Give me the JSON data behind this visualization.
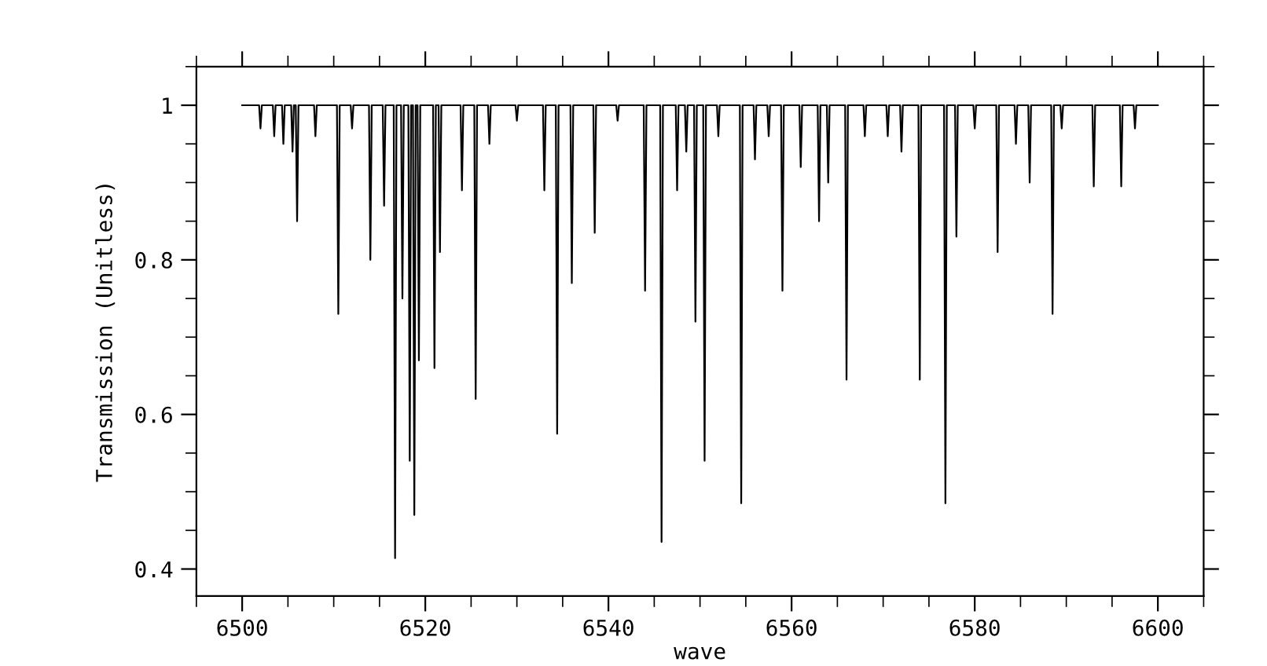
{
  "chart_data": {
    "type": "line",
    "xlabel": "wave",
    "ylabel": "Transmission (Unitless)",
    "xlim": [
      6495,
      6605
    ],
    "ylim": [
      0.365,
      1.05
    ],
    "xticks": [
      6500,
      6520,
      6540,
      6560,
      6580,
      6600
    ],
    "yticks": [
      0.4,
      0.6,
      0.8,
      1
    ],
    "marker": "none",
    "line_style": "solid",
    "series": [
      {
        "color": "#000000",
        "x": [
          6500,
          6501.85,
          6502,
          6502.15,
          6503.35,
          6503.5,
          6503.65,
          6504.35,
          6504.5,
          6504.65,
          6505.35,
          6505.5,
          6505.65,
          6505.85,
          6506,
          6506.15,
          6507.85,
          6508,
          6508.15,
          6510.35,
          6510.5,
          6510.65,
          6511.85,
          6512,
          6512.15,
          6513.85,
          6514,
          6514.15,
          6515.35,
          6515.5,
          6515.65,
          6516.55,
          6516.7,
          6516.85,
          6517.35,
          6517.5,
          6517.65,
          6518.15,
          6518.3,
          6518.45,
          6518.65,
          6518.8,
          6518.95,
          6519.15,
          6519.3,
          6519.45,
          6520.85,
          6521,
          6521.15,
          6521.45,
          6521.6,
          6521.75,
          6523.85,
          6524,
          6524.15,
          6525.35,
          6525.5,
          6525.65,
          6526.85,
          6527,
          6527.15,
          6529.85,
          6530,
          6530.15,
          6532.85,
          6533,
          6533.15,
          6534.25,
          6534.4,
          6534.55,
          6535.85,
          6536,
          6536.15,
          6538.35,
          6538.5,
          6538.65,
          6540.85,
          6541,
          6541.15,
          6543.85,
          6544,
          6544.15,
          6545.65,
          6545.8,
          6545.95,
          6547.35,
          6547.5,
          6547.65,
          6548.35,
          6548.5,
          6548.65,
          6549.35,
          6549.5,
          6549.65,
          6550.35,
          6550.5,
          6550.65,
          6551.85,
          6552,
          6552.15,
          6554.35,
          6554.5,
          6554.65,
          6555.85,
          6556,
          6556.15,
          6557.35,
          6557.5,
          6557.65,
          6558.85,
          6559,
          6559.15,
          6560.85,
          6561,
          6561.15,
          6562.85,
          6563,
          6563.15,
          6563.85,
          6564,
          6564.15,
          6565.85,
          6566,
          6566.15,
          6567.85,
          6568,
          6568.15,
          6570.35,
          6570.5,
          6570.65,
          6571.85,
          6572,
          6572.15,
          6573.85,
          6574,
          6574.15,
          6576.65,
          6576.8,
          6576.95,
          6577.85,
          6578,
          6578.15,
          6579.85,
          6580,
          6580.15,
          6582.35,
          6582.5,
          6582.65,
          6584.35,
          6584.5,
          6584.65,
          6585.85,
          6586,
          6586.15,
          6588.35,
          6588.5,
          6588.65,
          6589.35,
          6589.5,
          6589.65,
          6592.85,
          6593,
          6593.15,
          6595.85,
          6596,
          6596.15,
          6597.35,
          6597.5,
          6597.65,
          6600
        ],
        "values": [
          1,
          1,
          0.97,
          1,
          1,
          0.96,
          1,
          1,
          0.95,
          1,
          1,
          0.94,
          1,
          1,
          0.85,
          1,
          1,
          0.96,
          1,
          1,
          0.73,
          1,
          1,
          0.97,
          1,
          1,
          0.8,
          1,
          1,
          0.87,
          1,
          1,
          0.414,
          1,
          1,
          0.75,
          1,
          1,
          0.54,
          1,
          1,
          0.47,
          1,
          1,
          0.67,
          1,
          1,
          0.66,
          1,
          1,
          0.81,
          1,
          1,
          0.89,
          1,
          1,
          0.62,
          1,
          1,
          0.95,
          1,
          1,
          0.98,
          1,
          1,
          0.89,
          1,
          1,
          0.575,
          1,
          1,
          0.77,
          1,
          1,
          0.835,
          1,
          1,
          0.98,
          1,
          1,
          0.76,
          1,
          1,
          0.435,
          1,
          1,
          0.89,
          1,
          1,
          0.94,
          1,
          1,
          0.72,
          1,
          1,
          0.54,
          1,
          1,
          0.96,
          1,
          1,
          0.485,
          1,
          1,
          0.93,
          1,
          1,
          0.96,
          1,
          1,
          0.76,
          1,
          1,
          0.92,
          1,
          1,
          0.85,
          1,
          1,
          0.9,
          1,
          1,
          0.645,
          1,
          1,
          0.96,
          1,
          1,
          0.96,
          1,
          1,
          0.94,
          1,
          1,
          0.645,
          1,
          1,
          0.485,
          1,
          1,
          0.83,
          1,
          1,
          0.97,
          1,
          1,
          0.81,
          1,
          1,
          0.95,
          1,
          1,
          0.9,
          1,
          1,
          0.73,
          1,
          1,
          0.97,
          1,
          1,
          0.895,
          1,
          1,
          0.895,
          1,
          1,
          0.97,
          1,
          1
        ]
      }
    ]
  }
}
